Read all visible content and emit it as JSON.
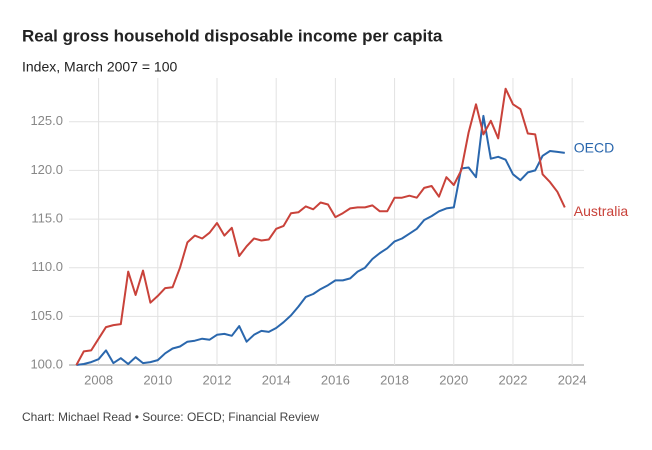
{
  "chart_data": {
    "type": "line",
    "title": "Real gross household disposable income per capita",
    "subtitle": "Index, March 2007 = 100",
    "source": "Chart: Michael Read • Source: OECD; Financial Review",
    "x": [
      2007.25,
      2007.5,
      2007.75,
      2008,
      2008.25,
      2008.5,
      2008.75,
      2009,
      2009.25,
      2009.5,
      2009.75,
      2010,
      2010.25,
      2010.5,
      2010.75,
      2011,
      2011.25,
      2011.5,
      2011.75,
      2012,
      2012.25,
      2012.5,
      2012.75,
      2013,
      2013.25,
      2013.5,
      2013.75,
      2014,
      2014.25,
      2014.5,
      2014.75,
      2015,
      2015.25,
      2015.5,
      2015.75,
      2016,
      2016.25,
      2016.5,
      2016.75,
      2017,
      2017.25,
      2017.5,
      2017.75,
      2018,
      2018.25,
      2018.5,
      2018.75,
      2019,
      2019.25,
      2019.5,
      2019.75,
      2020,
      2020.25,
      2020.5,
      2020.75,
      2021,
      2021.25,
      2021.5,
      2021.75,
      2022,
      2022.25,
      2022.5,
      2022.75,
      2023,
      2023.25,
      2023.5,
      2023.75
    ],
    "series": [
      {
        "name": "OECD",
        "color": "#2a67ad",
        "values": [
          100.0,
          100.1,
          100.3,
          100.6,
          101.5,
          100.2,
          100.7,
          100.1,
          100.8,
          100.2,
          100.3,
          100.5,
          101.2,
          101.7,
          101.9,
          102.4,
          102.5,
          102.7,
          102.6,
          103.1,
          103.2,
          103.0,
          104.0,
          102.4,
          103.1,
          103.5,
          103.4,
          103.8,
          104.4,
          105.1,
          106.0,
          107.0,
          107.3,
          107.8,
          108.2,
          108.7,
          108.7,
          108.9,
          109.6,
          110.0,
          110.9,
          111.5,
          112.0,
          112.7,
          113.0,
          113.5,
          114.0,
          114.9,
          115.3,
          115.8,
          116.1,
          116.2,
          120.2,
          120.3,
          119.3,
          125.6,
          121.2,
          121.4,
          121.1,
          119.6,
          119.0,
          119.8,
          120.0,
          121.5,
          122.0,
          121.9,
          121.8
        ]
      },
      {
        "name": "Australia",
        "color": "#c9423a",
        "values": [
          100.0,
          101.4,
          101.5,
          102.7,
          103.9,
          104.1,
          104.2,
          109.6,
          107.2,
          109.7,
          106.4,
          107.1,
          107.9,
          108.0,
          110.0,
          112.6,
          113.3,
          113.0,
          113.6,
          114.6,
          113.3,
          114.1,
          111.2,
          112.2,
          113.0,
          112.8,
          112.9,
          114.0,
          114.3,
          115.6,
          115.7,
          116.3,
          116.0,
          116.7,
          116.5,
          115.2,
          115.6,
          116.1,
          116.2,
          116.2,
          116.4,
          115.8,
          115.8,
          117.2,
          117.2,
          117.4,
          117.2,
          118.2,
          118.4,
          117.3,
          119.3,
          118.5,
          120.0,
          123.9,
          126.8,
          123.7,
          125.1,
          123.3,
          128.4,
          126.8,
          126.3,
          123.8,
          123.7,
          119.6,
          118.8,
          117.8,
          116.2
        ]
      }
    ],
    "xlim": [
      2007,
      2024.4
    ],
    "xticks": [
      2008,
      2010,
      2012,
      2014,
      2016,
      2018,
      2020,
      2022,
      2024
    ],
    "ylim": [
      100,
      129.5
    ],
    "yticks": [
      {
        "value": 100,
        "label": "100.0"
      },
      {
        "value": 105,
        "label": "105.0"
      },
      {
        "value": 110,
        "label": "110.0"
      },
      {
        "value": 115,
        "label": "115.0"
      },
      {
        "value": 120,
        "label": "120.0"
      },
      {
        "value": 125,
        "label": "125.0"
      }
    ],
    "grid": true
  }
}
